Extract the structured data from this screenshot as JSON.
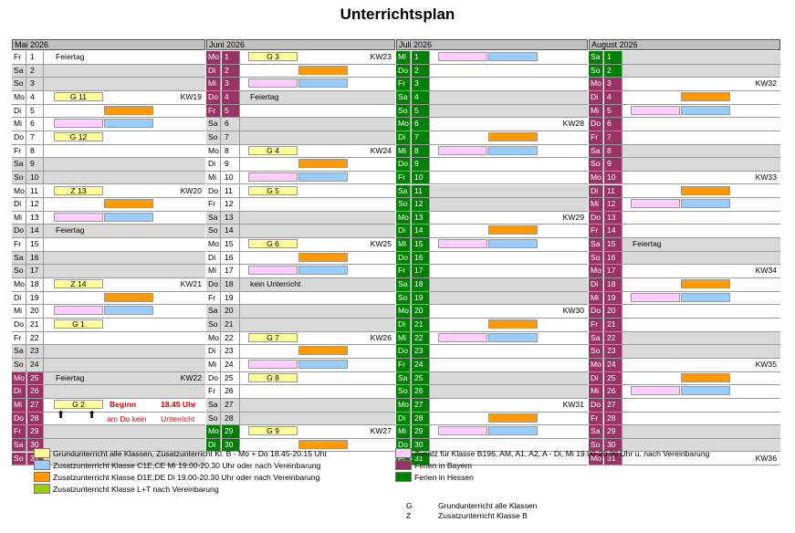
{
  "title": "Unterrichtsplan",
  "months": [
    {
      "name": "Mai 2026",
      "rows": [
        {
          "wd": "Fr",
          "d": "1",
          "note": "Feiertag"
        },
        {
          "wd": "Sa",
          "d": "2",
          "gray": true
        },
        {
          "wd": "So",
          "d": "3",
          "gray": true
        },
        {
          "wd": "Mo",
          "d": "4",
          "c1": [
            "yellow",
            "G 11"
          ],
          "kw": "KW19"
        },
        {
          "wd": "Di",
          "d": "5",
          "c2": [
            "orange",
            ""
          ]
        },
        {
          "wd": "Mi",
          "d": "6",
          "c1": [
            "pink",
            ""
          ],
          "c2": [
            "blue",
            ""
          ]
        },
        {
          "wd": "Do",
          "d": "7",
          "c1": [
            "yellow",
            "G 12"
          ]
        },
        {
          "wd": "Fr",
          "d": "8"
        },
        {
          "wd": "Sa",
          "d": "9",
          "gray": true
        },
        {
          "wd": "So",
          "d": "10",
          "gray": true
        },
        {
          "wd": "Mo",
          "d": "11",
          "c1": [
            "yellow",
            "Z 13"
          ],
          "kw": "KW20"
        },
        {
          "wd": "Di",
          "d": "12",
          "c2": [
            "orange",
            ""
          ]
        },
        {
          "wd": "Mi",
          "d": "13",
          "c1": [
            "pink",
            ""
          ],
          "c2": [
            "blue",
            ""
          ]
        },
        {
          "wd": "Do",
          "d": "14",
          "note": "Feiertag",
          "gray": true
        },
        {
          "wd": "Fr",
          "d": "15"
        },
        {
          "wd": "Sa",
          "d": "16",
          "gray": true
        },
        {
          "wd": "So",
          "d": "17",
          "gray": true
        },
        {
          "wd": "Mo",
          "d": "18",
          "c1": [
            "yellow",
            "Z 14"
          ],
          "kw": "KW21"
        },
        {
          "wd": "Di",
          "d": "19",
          "c2": [
            "orange",
            ""
          ]
        },
        {
          "wd": "Mi",
          "d": "20",
          "c1": [
            "pink",
            ""
          ],
          "c2": [
            "blue",
            ""
          ]
        },
        {
          "wd": "Do",
          "d": "21",
          "c1": [
            "yellow",
            "G 1"
          ]
        },
        {
          "wd": "Fr",
          "d": "22"
        },
        {
          "wd": "Sa",
          "d": "23",
          "gray": true
        },
        {
          "wd": "So",
          "d": "24",
          "gray": true
        },
        {
          "wd": "Mo",
          "d": "25",
          "note": "Feiertag",
          "kw": "KW22",
          "hol": "by",
          "gray": true
        },
        {
          "wd": "Di",
          "d": "26",
          "hol": "by",
          "gray": true
        },
        {
          "wd": "Mi",
          "d": "27",
          "hol": "by",
          "c1": [
            "yellow",
            "G 2"
          ]
        },
        {
          "wd": "Do",
          "d": "28",
          "hol": "by"
        },
        {
          "wd": "Fr",
          "d": "29",
          "hol": "by",
          "gray": true
        },
        {
          "wd": "Sa",
          "d": "30",
          "hol": "by",
          "gray": true
        },
        {
          "wd": "So",
          "d": "31",
          "hol": "by",
          "gray": true
        }
      ]
    },
    {
      "name": "Juni 2026",
      "rows": [
        {
          "wd": "Mo",
          "d": "1",
          "hol": "by",
          "c1": [
            "yellow",
            "G 3"
          ],
          "kw": "KW23"
        },
        {
          "wd": "Di",
          "d": "2",
          "hol": "by",
          "c2": [
            "orange",
            ""
          ]
        },
        {
          "wd": "Mi",
          "d": "3",
          "hol": "by",
          "c1": [
            "pink",
            ""
          ],
          "c2": [
            "blue",
            ""
          ]
        },
        {
          "wd": "Do",
          "d": "4",
          "hol": "by",
          "note": "Feiertag",
          "gray": true
        },
        {
          "wd": "Fr",
          "d": "5",
          "hol": "by"
        },
        {
          "wd": "Sa",
          "d": "6",
          "gray": true
        },
        {
          "wd": "So",
          "d": "7",
          "gray": true
        },
        {
          "wd": "Mo",
          "d": "8",
          "c1": [
            "yellow",
            "G 4"
          ],
          "kw": "KW24"
        },
        {
          "wd": "Di",
          "d": "9",
          "c2": [
            "orange",
            ""
          ]
        },
        {
          "wd": "Mi",
          "d": "10",
          "c1": [
            "pink",
            ""
          ],
          "c2": [
            "blue",
            ""
          ]
        },
        {
          "wd": "Do",
          "d": "11",
          "c1": [
            "yellow",
            "G 5"
          ]
        },
        {
          "wd": "Fr",
          "d": "12"
        },
        {
          "wd": "Sa",
          "d": "13",
          "gray": true
        },
        {
          "wd": "So",
          "d": "14",
          "gray": true
        },
        {
          "wd": "Mo",
          "d": "15",
          "c1": [
            "yellow",
            "G 6"
          ],
          "kw": "KW25"
        },
        {
          "wd": "Di",
          "d": "16",
          "c2": [
            "orange",
            ""
          ]
        },
        {
          "wd": "Mi",
          "d": "17",
          "c1": [
            "pink",
            ""
          ],
          "c2": [
            "blue",
            ""
          ]
        },
        {
          "wd": "Do",
          "d": "18",
          "note": "kein Unterricht",
          "gray": true
        },
        {
          "wd": "Fr",
          "d": "19"
        },
        {
          "wd": "Sa",
          "d": "20",
          "gray": true
        },
        {
          "wd": "So",
          "d": "21",
          "gray": true
        },
        {
          "wd": "Mo",
          "d": "22",
          "c1": [
            "yellow",
            "G 7"
          ],
          "kw": "KW26"
        },
        {
          "wd": "Di",
          "d": "23",
          "c2": [
            "orange",
            ""
          ]
        },
        {
          "wd": "Mi",
          "d": "24",
          "c1": [
            "pink",
            ""
          ],
          "c2": [
            "blue",
            ""
          ]
        },
        {
          "wd": "Do",
          "d": "25",
          "c1": [
            "yellow",
            "G 8"
          ]
        },
        {
          "wd": "Fr",
          "d": "26"
        },
        {
          "wd": "Sa",
          "d": "27",
          "gray": true
        },
        {
          "wd": "So",
          "d": "28",
          "gray": true
        },
        {
          "wd": "Mo",
          "d": "29",
          "hol": "he",
          "c1": [
            "yellow",
            "G 9"
          ],
          "kw": "KW27"
        },
        {
          "wd": "Di",
          "d": "30",
          "hol": "he",
          "c2": [
            "orange",
            ""
          ]
        }
      ]
    },
    {
      "name": "Juli 2026",
      "rows": [
        {
          "wd": "Mi",
          "d": "1",
          "hol": "he",
          "c1": [
            "pink",
            ""
          ],
          "c2": [
            "blue",
            ""
          ]
        },
        {
          "wd": "Do",
          "d": "2",
          "hol": "he"
        },
        {
          "wd": "Fr",
          "d": "3",
          "hol": "he"
        },
        {
          "wd": "Sa",
          "d": "4",
          "hol": "he",
          "gray": true
        },
        {
          "wd": "So",
          "d": "5",
          "hol": "he",
          "gray": true
        },
        {
          "wd": "Mo",
          "d": "6",
          "hol": "he",
          "kw": "KW28"
        },
        {
          "wd": "Di",
          "d": "7",
          "hol": "he",
          "c2": [
            "orange",
            ""
          ]
        },
        {
          "wd": "Mi",
          "d": "8",
          "hol": "he",
          "c1": [
            "pink",
            ""
          ],
          "c2": [
            "blue",
            ""
          ]
        },
        {
          "wd": "Do",
          "d": "9",
          "hol": "he"
        },
        {
          "wd": "Fr",
          "d": "10",
          "hol": "he"
        },
        {
          "wd": "Sa",
          "d": "11",
          "hol": "he",
          "gray": true
        },
        {
          "wd": "So",
          "d": "12",
          "hol": "he",
          "gray": true
        },
        {
          "wd": "Mo",
          "d": "13",
          "hol": "he",
          "kw": "KW29"
        },
        {
          "wd": "Di",
          "d": "14",
          "hol": "he",
          "c2": [
            "orange",
            ""
          ]
        },
        {
          "wd": "Mi",
          "d": "15",
          "hol": "he",
          "c1": [
            "pink",
            ""
          ],
          "c2": [
            "blue",
            ""
          ]
        },
        {
          "wd": "Do",
          "d": "16",
          "hol": "he"
        },
        {
          "wd": "Fr",
          "d": "17",
          "hol": "he"
        },
        {
          "wd": "Sa",
          "d": "18",
          "hol": "he",
          "gray": true
        },
        {
          "wd": "So",
          "d": "19",
          "hol": "he",
          "gray": true
        },
        {
          "wd": "Mo",
          "d": "20",
          "hol": "he",
          "kw": "KW30"
        },
        {
          "wd": "Di",
          "d": "21",
          "hol": "he",
          "c2": [
            "orange",
            ""
          ]
        },
        {
          "wd": "Mi",
          "d": "22",
          "hol": "he",
          "c1": [
            "pink",
            ""
          ],
          "c2": [
            "blue",
            ""
          ]
        },
        {
          "wd": "Do",
          "d": "23",
          "hol": "he"
        },
        {
          "wd": "Fr",
          "d": "24",
          "hol": "he"
        },
        {
          "wd": "Sa",
          "d": "25",
          "hol": "he",
          "gray": true
        },
        {
          "wd": "So",
          "d": "26",
          "hol": "he",
          "gray": true
        },
        {
          "wd": "Mo",
          "d": "27",
          "hol": "he",
          "kw": "KW31"
        },
        {
          "wd": "Di",
          "d": "28",
          "hol": "he",
          "c2": [
            "orange",
            ""
          ]
        },
        {
          "wd": "Mi",
          "d": "29",
          "hol": "he",
          "c1": [
            "pink",
            ""
          ],
          "c2": [
            "blue",
            ""
          ]
        },
        {
          "wd": "Do",
          "d": "30",
          "hol": "he"
        },
        {
          "wd": "Fr",
          "d": "31",
          "hol": "he"
        }
      ]
    },
    {
      "name": "August 2026",
      "rows": [
        {
          "wd": "Sa",
          "d": "1",
          "hol": "he",
          "gray": true
        },
        {
          "wd": "So",
          "d": "2",
          "hol": "he",
          "gray": true
        },
        {
          "wd": "Mo",
          "d": "3",
          "hol": "by",
          "kw": "KW32"
        },
        {
          "wd": "Di",
          "d": "4",
          "hol": "by",
          "c2": [
            "orange",
            ""
          ]
        },
        {
          "wd": "Mi",
          "d": "5",
          "hol": "by",
          "c1": [
            "pink",
            ""
          ],
          "c2": [
            "blue",
            ""
          ]
        },
        {
          "wd": "Do",
          "d": "6",
          "hol": "by"
        },
        {
          "wd": "Fr",
          "d": "7",
          "hol": "by"
        },
        {
          "wd": "Sa",
          "d": "8",
          "hol": "by",
          "gray": true
        },
        {
          "wd": "So",
          "d": "9",
          "hol": "by",
          "gray": true
        },
        {
          "wd": "Mo",
          "d": "10",
          "hol": "by",
          "kw": "KW33"
        },
        {
          "wd": "Di",
          "d": "11",
          "hol": "by",
          "c2": [
            "orange",
            ""
          ]
        },
        {
          "wd": "Mi",
          "d": "12",
          "hol": "by",
          "c1": [
            "pink",
            ""
          ],
          "c2": [
            "blue",
            ""
          ]
        },
        {
          "wd": "Do",
          "d": "13",
          "hol": "by"
        },
        {
          "wd": "Fr",
          "d": "14",
          "hol": "by"
        },
        {
          "wd": "Sa",
          "d": "15",
          "hol": "by",
          "note": "Feiertag",
          "gray": true
        },
        {
          "wd": "So",
          "d": "16",
          "hol": "by",
          "gray": true
        },
        {
          "wd": "Mo",
          "d": "17",
          "hol": "by",
          "kw": "KW34"
        },
        {
          "wd": "Di",
          "d": "18",
          "hol": "by",
          "c2": [
            "orange",
            ""
          ]
        },
        {
          "wd": "Mi",
          "d": "19",
          "hol": "by",
          "c1": [
            "pink",
            ""
          ],
          "c2": [
            "blue",
            ""
          ]
        },
        {
          "wd": "Do",
          "d": "20",
          "hol": "by"
        },
        {
          "wd": "Fr",
          "d": "21",
          "hol": "by"
        },
        {
          "wd": "Sa",
          "d": "22",
          "hol": "by",
          "gray": true
        },
        {
          "wd": "So",
          "d": "23",
          "hol": "by",
          "gray": true
        },
        {
          "wd": "Mo",
          "d": "24",
          "hol": "by",
          "kw": "KW35"
        },
        {
          "wd": "Di",
          "d": "25",
          "hol": "by",
          "c2": [
            "orange",
            ""
          ]
        },
        {
          "wd": "Mi",
          "d": "26",
          "hol": "by",
          "c1": [
            "pink",
            ""
          ],
          "c2": [
            "blue",
            ""
          ]
        },
        {
          "wd": "Do",
          "d": "27",
          "hol": "by"
        },
        {
          "wd": "Fr",
          "d": "28",
          "hol": "by"
        },
        {
          "wd": "Sa",
          "d": "29",
          "hol": "by",
          "gray": true
        },
        {
          "wd": "So",
          "d": "30",
          "hol": "by",
          "gray": true
        },
        {
          "wd": "Mo",
          "d": "31",
          "hol": "by",
          "kw": "KW36"
        }
      ]
    }
  ],
  "may_note": {
    "beginn": "Beginn",
    "time": "18.45 Uhr",
    "line2a": "am Do kein",
    "line2b": "Unterricht"
  },
  "legend_left": [
    {
      "color": "#ffff99",
      "text": "Grundunterricht alle Klassen, Zusatzunterricht Kl. B - Mo + Do 18.45-20.15 Uhr"
    },
    {
      "color": "#99ccff",
      "text": "Zusatzunterricht Klasse C1E,CE  Mi 19.00-20.30 Uhr oder nach Vereinbarung"
    },
    {
      "color": "#ff9900",
      "text": "Zusatzunterricht Klasse D1E,DE  Di 19.00-20.30 Uhr oder nach Vereinbarung"
    },
    {
      "color": "#99cc00",
      "text": "Zusatzunterricht Klasse L+T nach Vereinbarung"
    }
  ],
  "legend_right": [
    {
      "color": "#ffccff",
      "text": "Zusatz für Klasse B196, AM, A1, A2, A - Di, Mi 19.00-20.30 Uhr u. nach Vereinbarung"
    },
    {
      "color": "#993366",
      "text": "Ferien in Bayern"
    },
    {
      "color": "#008000",
      "text": "Ferien in Hessen"
    }
  ],
  "abbrev": [
    {
      "k": "G",
      "v": "Grundunterricht alle Klassen"
    },
    {
      "k": "Z",
      "v": "Zusatzunterricht Klasse B"
    }
  ]
}
